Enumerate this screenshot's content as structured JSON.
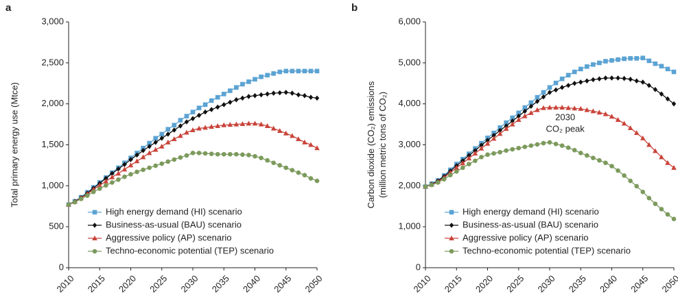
{
  "chart_data": [
    {
      "type": "line",
      "panel": "a",
      "ylabel": [
        "Total primary energy use (Mtce)"
      ],
      "x": [
        2010,
        2011,
        2012,
        2013,
        2014,
        2015,
        2016,
        2017,
        2018,
        2019,
        2020,
        2021,
        2022,
        2023,
        2024,
        2025,
        2026,
        2027,
        2028,
        2029,
        2030,
        2031,
        2032,
        2033,
        2034,
        2035,
        2036,
        2037,
        2038,
        2039,
        2040,
        2041,
        2042,
        2043,
        2044,
        2045,
        2046,
        2047,
        2048,
        2049,
        2050
      ],
      "xlim": [
        2010,
        2050
      ],
      "xticks": [
        2010,
        2015,
        2020,
        2025,
        2030,
        2035,
        2040,
        2045,
        2050
      ],
      "ylim": [
        0,
        3000
      ],
      "yticks": [
        0,
        500,
        {
          "value": 1000,
          "label": "1,000"
        },
        {
          "value": 1500,
          "label": "1,500"
        },
        {
          "value": 2000,
          "label": "2,000"
        },
        {
          "value": 2500,
          "label": "2,500"
        },
        {
          "value": 3000,
          "label": "3,000"
        }
      ],
      "series": [
        {
          "name": "High energy demand (HI) scenario",
          "color": "#5ba3d3",
          "marker": "square",
          "values": [
            770,
            810,
            860,
            920,
            980,
            1040,
            1100,
            1160,
            1220,
            1280,
            1340,
            1400,
            1460,
            1520,
            1580,
            1630,
            1690,
            1740,
            1800,
            1850,
            1900,
            1950,
            1990,
            2040,
            2080,
            2120,
            2160,
            2200,
            2240,
            2270,
            2300,
            2330,
            2350,
            2370,
            2390,
            2400,
            2400,
            2400,
            2400,
            2400,
            2400
          ]
        },
        {
          "name": "Business-as-usual (BAU) scenario",
          "color": "#111111",
          "marker": "diamond",
          "values": [
            770,
            810,
            855,
            910,
            970,
            1030,
            1090,
            1150,
            1205,
            1260,
            1320,
            1375,
            1430,
            1480,
            1530,
            1580,
            1630,
            1680,
            1730,
            1780,
            1820,
            1860,
            1900,
            1930,
            1960,
            1990,
            2020,
            2050,
            2070,
            2090,
            2100,
            2110,
            2120,
            2130,
            2135,
            2140,
            2130,
            2110,
            2100,
            2080,
            2070
          ]
        },
        {
          "name": "Aggressive policy (AP) scenario",
          "color": "#c9443a",
          "marker": "triangle",
          "values": [
            770,
            805,
            850,
            900,
            955,
            1005,
            1055,
            1105,
            1150,
            1200,
            1250,
            1300,
            1350,
            1400,
            1440,
            1480,
            1530,
            1570,
            1610,
            1650,
            1680,
            1700,
            1710,
            1720,
            1730,
            1740,
            1745,
            1750,
            1755,
            1760,
            1760,
            1750,
            1730,
            1700,
            1670,
            1640,
            1610,
            1570,
            1530,
            1500,
            1460
          ]
        },
        {
          "name": "Techno-economic potential (TEP) scenario",
          "color": "#7c9a5c",
          "marker": "circle",
          "values": [
            770,
            800,
            840,
            880,
            925,
            965,
            1005,
            1040,
            1075,
            1110,
            1140,
            1170,
            1195,
            1220,
            1245,
            1270,
            1295,
            1320,
            1345,
            1370,
            1400,
            1400,
            1395,
            1390,
            1385,
            1385,
            1385,
            1385,
            1380,
            1375,
            1360,
            1340,
            1310,
            1280,
            1250,
            1220,
            1190,
            1160,
            1130,
            1090,
            1060
          ]
        }
      ]
    },
    {
      "type": "line",
      "panel": "b",
      "ylabel": [
        "Carbon dioxide (CO₂) emissions",
        "(million metric tons of CO₂)"
      ],
      "annotation": [
        "2030",
        "CO₂ peak"
      ],
      "x": [
        2010,
        2011,
        2012,
        2013,
        2014,
        2015,
        2016,
        2017,
        2018,
        2019,
        2020,
        2021,
        2022,
        2023,
        2024,
        2025,
        2026,
        2027,
        2028,
        2029,
        2030,
        2031,
        2032,
        2033,
        2034,
        2035,
        2036,
        2037,
        2038,
        2039,
        2040,
        2041,
        2042,
        2043,
        2044,
        2045,
        2046,
        2047,
        2048,
        2049,
        2050
      ],
      "xlim": [
        2010,
        2050
      ],
      "xticks": [
        2010,
        2015,
        2020,
        2025,
        2030,
        2035,
        2040,
        2045,
        2050
      ],
      "ylim": [
        0,
        6000
      ],
      "yticks": [
        0,
        {
          "value": 1000,
          "label": "1,000"
        },
        {
          "value": 2000,
          "label": "2,000"
        },
        {
          "value": 3000,
          "label": "3,000"
        },
        {
          "value": 4000,
          "label": "4,000"
        },
        {
          "value": 5000,
          "label": "5,000"
        },
        {
          "value": 6000,
          "label": "6,000"
        }
      ],
      "series": [
        {
          "name": "High energy demand (HI) scenario",
          "color": "#5ba3d3",
          "marker": "square",
          "values": [
            1980,
            2050,
            2130,
            2250,
            2390,
            2530,
            2650,
            2780,
            2910,
            3040,
            3170,
            3290,
            3420,
            3540,
            3660,
            3780,
            3910,
            4030,
            4160,
            4280,
            4400,
            4510,
            4610,
            4700,
            4780,
            4850,
            4910,
            4960,
            5000,
            5040,
            5060,
            5080,
            5100,
            5110,
            5110,
            5120,
            5050,
            4980,
            4920,
            4850,
            4780
          ]
        },
        {
          "name": "Business-as-usual (BAU) scenario",
          "color": "#111111",
          "marker": "diamond",
          "values": [
            1980,
            2040,
            2120,
            2230,
            2360,
            2490,
            2610,
            2740,
            2860,
            2990,
            3110,
            3230,
            3350,
            3460,
            3580,
            3700,
            3820,
            3940,
            4060,
            4170,
            4280,
            4340,
            4400,
            4450,
            4500,
            4530,
            4560,
            4590,
            4610,
            4630,
            4630,
            4630,
            4620,
            4600,
            4560,
            4530,
            4450,
            4350,
            4240,
            4120,
            4000
          ]
        },
        {
          "name": "Aggressive policy (AP) scenario",
          "color": "#c9443a",
          "marker": "triangle",
          "values": [
            1980,
            2030,
            2100,
            2200,
            2320,
            2440,
            2550,
            2670,
            2790,
            2910,
            3030,
            3150,
            3270,
            3390,
            3500,
            3610,
            3700,
            3780,
            3850,
            3900,
            3910,
            3910,
            3910,
            3900,
            3890,
            3880,
            3850,
            3820,
            3790,
            3750,
            3690,
            3610,
            3520,
            3410,
            3290,
            3160,
            3000,
            2850,
            2700,
            2560,
            2440
          ]
        },
        {
          "name": "Techno-economic potential (TEP) scenario",
          "color": "#7c9a5c",
          "marker": "circle",
          "values": [
            1980,
            2020,
            2080,
            2160,
            2260,
            2350,
            2440,
            2530,
            2610,
            2700,
            2760,
            2790,
            2820,
            2860,
            2890,
            2920,
            2950,
            2980,
            3010,
            3040,
            3060,
            3020,
            2980,
            2930,
            2870,
            2800,
            2740,
            2680,
            2620,
            2560,
            2480,
            2370,
            2250,
            2120,
            1990,
            1850,
            1700,
            1560,
            1430,
            1300,
            1190
          ]
        }
      ]
    }
  ]
}
